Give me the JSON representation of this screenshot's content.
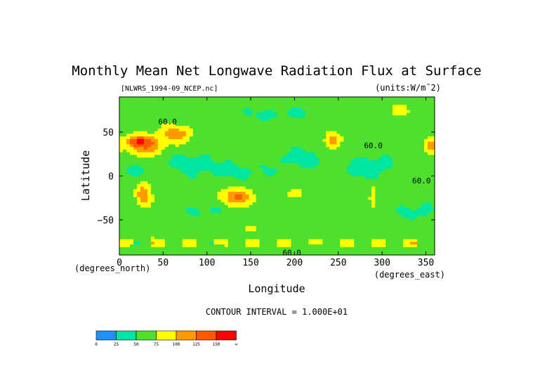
{
  "chart_data": {
    "type": "heatmap",
    "title": "Monthly Mean Net Longwave Radiation Flux at Surface",
    "dataset_label": "[NLWRS_1994-09_NCEP.nc]",
    "units_label": "(units:W/m^2)",
    "units_display": "(units:W/m¯2)",
    "xlabel": "Longitude",
    "ylabel": "Latitude",
    "x_units_label": "(degrees_east)",
    "y_units_label": "(degrees_north)",
    "xlim": [
      0,
      360
    ],
    "ylim": [
      -90,
      90
    ],
    "x_ticks": [
      {
        "value": 0,
        "label": "0"
      },
      {
        "value": 50,
        "label": "50"
      },
      {
        "value": 100,
        "label": "100"
      },
      {
        "value": 150,
        "label": "150"
      },
      {
        "value": 200,
        "label": "200"
      },
      {
        "value": 250,
        "label": "250"
      },
      {
        "value": 300,
        "label": "300"
      },
      {
        "value": 350,
        "label": "350"
      }
    ],
    "y_ticks": [
      {
        "value": 50,
        "label": "50"
      },
      {
        "value": 0,
        "label": "0"
      },
      {
        "value": -50,
        "label": "−50"
      }
    ],
    "contour_interval_text": "CONTOUR INTERVAL = 1.000E+01",
    "contour_labels": [
      {
        "text": "60.0",
        "lon": 55,
        "lat": 62
      },
      {
        "text": "60.0",
        "lon": 290,
        "lat": 35
      },
      {
        "text": "60.0",
        "lon": 345,
        "lat": -5
      },
      {
        "text": "60.0",
        "lon": 197,
        "lat": -87
      }
    ],
    "colorbar": {
      "boundaries": [
        0,
        25,
        50,
        75,
        100,
        125,
        150
      ],
      "labels": [
        "0",
        "25",
        "50",
        "75",
        "100",
        "125",
        "150",
        "∞"
      ],
      "colors": [
        "#1e90ff",
        "#00e5a0",
        "#4ee02e",
        "#ffff00",
        "#ff9a00",
        "#ff5a00",
        "#ff0000"
      ]
    },
    "background_value": 60,
    "regions": [
      {
        "lon": 30,
        "lat": 35,
        "rlon": 20,
        "rlat": 12,
        "value": 125
      },
      {
        "lon": 65,
        "lat": 48,
        "rlon": 18,
        "rlat": 10,
        "value": 115
      },
      {
        "lon": 20,
        "lat": 40,
        "rlon": 14,
        "rlat": 6,
        "value": 110
      },
      {
        "lon": 28,
        "lat": -22,
        "rlon": 9,
        "rlat": 13,
        "value": 118
      },
      {
        "lon": 135,
        "lat": -24,
        "rlon": 19,
        "rlat": 10,
        "value": 125
      },
      {
        "lon": 243,
        "lat": 40,
        "rlon": 10,
        "rlat": 10,
        "value": 110
      },
      {
        "lon": 290,
        "lat": -25,
        "rlon": 4,
        "rlat": 14,
        "value": 95
      },
      {
        "lon": 320,
        "lat": 75,
        "rlon": 10,
        "rlat": 7,
        "value": 95
      },
      {
        "lon": 355,
        "lat": 35,
        "rlon": 7,
        "rlat": 9,
        "value": 110
      },
      {
        "lon": 150,
        "lat": -60,
        "rlon": 12,
        "rlat": 4,
        "value": 85
      },
      {
        "lon": 200,
        "lat": -20,
        "rlon": 22,
        "rlat": 8,
        "value": 80
      },
      {
        "lon": 290,
        "lat": -60,
        "rlon": 20,
        "rlat": 5,
        "value": 75
      },
      {
        "lon": 80,
        "lat": 15,
        "rlon": 30,
        "rlat": 10,
        "value": 40
      },
      {
        "lon": 135,
        "lat": 5,
        "rlon": 45,
        "rlat": 10,
        "value": 45
      },
      {
        "lon": 210,
        "lat": 20,
        "rlon": 30,
        "rlat": 12,
        "value": 42
      },
      {
        "lon": 285,
        "lat": 10,
        "rlon": 25,
        "rlat": 14,
        "value": 38
      },
      {
        "lon": 15,
        "lat": 5,
        "rlon": 12,
        "rlat": 8,
        "value": 40
      },
      {
        "lon": 180,
        "lat": 70,
        "rlon": 60,
        "rlat": 10,
        "value": 48
      },
      {
        "lon": 100,
        "lat": -40,
        "rlon": 25,
        "rlat": 8,
        "value": 45
      },
      {
        "lon": 340,
        "lat": -40,
        "rlon": 20,
        "rlat": 10,
        "value": 42
      }
    ],
    "bands": [
      {
        "lat": -76,
        "half": 5,
        "values": [
          85,
          55,
          95,
          60,
          88,
          52,
          90,
          62,
          86,
          55,
          92,
          58,
          84,
          60,
          94,
          56,
          88,
          54,
          96,
          60
        ]
      }
    ]
  }
}
